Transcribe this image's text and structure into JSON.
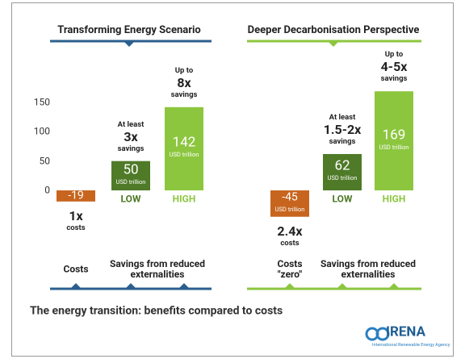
{
  "chart_data": [
    {
      "type": "bar",
      "title": "Transforming Energy Scenario",
      "categories": [
        null,
        "LOW",
        "HIGH"
      ],
      "values": [
        -19,
        50,
        142
      ],
      "unit_labels": [
        null,
        "USD trillion",
        "USD trillion"
      ],
      "colors": [
        "#c7651f",
        "#4f7a28",
        "#8cc63f"
      ],
      "annotations": [
        {
          "multiple": "1x",
          "suffix": "costs"
        },
        {
          "prefix": "At least",
          "multiple": "3x",
          "suffix": "savings"
        },
        {
          "prefix": "Up to",
          "multiple": "8x",
          "suffix": "savings"
        }
      ],
      "footer_labels": [
        "Costs",
        "Savings from reduced externalities"
      ],
      "accent_color": "#2b5f8e",
      "ylim": [
        -60,
        180
      ],
      "yticks": [
        0,
        50,
        100,
        150
      ]
    },
    {
      "type": "bar",
      "title": "Deeper Decarbonisation Perspective",
      "categories": [
        null,
        "LOW",
        "HIGH"
      ],
      "values": [
        -45,
        62,
        169
      ],
      "unit_labels": [
        "USD trillion",
        "USD trillion",
        "USD trillion"
      ],
      "colors": [
        "#c7651f",
        "#4f7a28",
        "#8cc63f"
      ],
      "annotations": [
        {
          "multiple": "2.4x",
          "suffix": "costs"
        },
        {
          "prefix": "At least",
          "multiple": "1.5-2x",
          "suffix": "savings"
        },
        {
          "prefix": "Up to",
          "multiple": "4-5x",
          "suffix": "savings"
        }
      ],
      "footer_labels": [
        "Costs \"zero\"",
        "Savings from reduced externalities"
      ],
      "accent_color": "#8cc63f",
      "ylim": [
        -60,
        180
      ]
    }
  ],
  "caption": "The energy transition: benefits compared to costs",
  "logo": {
    "name": "IRENA",
    "subtitle": "International Renewable Energy Agency"
  }
}
